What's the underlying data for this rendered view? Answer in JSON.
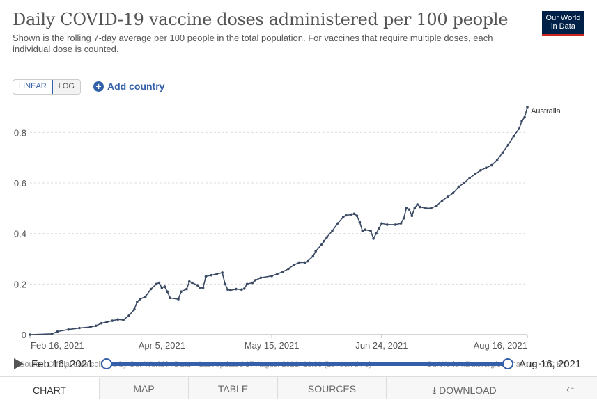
{
  "header": {
    "title": "Daily COVID-19 vaccine doses administered per 100 people",
    "subtitle": "Shown is the rolling 7-day average per 100 people in the total population. For vaccines that require multiple doses, each individual dose is counted.",
    "logo_line1": "Our World",
    "logo_line2": "in Data"
  },
  "controls": {
    "linear_label": "LINEAR",
    "log_label": "LOG",
    "add_country_label": "Add country"
  },
  "timeline": {
    "start_label": "Feb 16, 2021",
    "end_label": "Aug 16, 2021",
    "source_text": "Source: Official data collated by Our World in Data – Last updated 17 August 2021, 18:00 (London time)",
    "right_text": "OurWorldInData.org/coronavirus • CC BY"
  },
  "tabs": {
    "chart": "CHART",
    "map": "MAP",
    "table": "TABLE",
    "sources": "SOURCES",
    "download": "DOWNLOAD"
  },
  "colors": {
    "line": "#3b4a64",
    "grid": "#dddddd",
    "accent": "#3360a9"
  },
  "chart_data": {
    "type": "line",
    "title": "Daily COVID-19 vaccine doses administered per 100 people",
    "xlabel": "",
    "ylabel": "",
    "ylim": [
      0,
      0.9
    ],
    "yticks": [
      0,
      0.2,
      0.4,
      0.6,
      0.8
    ],
    "ytick_labels": [
      "0",
      "0.2",
      "0.4",
      "0.6",
      "0.8"
    ],
    "xlim_days": [
      0,
      181
    ],
    "xticks": [
      {
        "day": 0,
        "label": "Feb 16, 2021"
      },
      {
        "day": 48,
        "label": "Apr 5, 2021"
      },
      {
        "day": 88,
        "label": "May 15, 2021"
      },
      {
        "day": 128,
        "label": "Jun 24, 2021"
      },
      {
        "day": 181,
        "label": "Aug 16, 2021"
      }
    ],
    "series": [
      {
        "name": "Australia",
        "points": [
          [
            0,
            0
          ],
          [
            8,
            0.003
          ],
          [
            10,
            0.012
          ],
          [
            14,
            0.02
          ],
          [
            18,
            0.026
          ],
          [
            22,
            0.03
          ],
          [
            24,
            0.035
          ],
          [
            26,
            0.045
          ],
          [
            28,
            0.05
          ],
          [
            30,
            0.055
          ],
          [
            32,
            0.06
          ],
          [
            34,
            0.058
          ],
          [
            36,
            0.075
          ],
          [
            38,
            0.1
          ],
          [
            39,
            0.13
          ],
          [
            40,
            0.14
          ],
          [
            42,
            0.15
          ],
          [
            44,
            0.18
          ],
          [
            46,
            0.2
          ],
          [
            47,
            0.205
          ],
          [
            48,
            0.185
          ],
          [
            49,
            0.19
          ],
          [
            50,
            0.17
          ],
          [
            51,
            0.145
          ],
          [
            54,
            0.14
          ],
          [
            55,
            0.17
          ],
          [
            57,
            0.18
          ],
          [
            58,
            0.21
          ],
          [
            59,
            0.205
          ],
          [
            61,
            0.195
          ],
          [
            62,
            0.185
          ],
          [
            63,
            0.185
          ],
          [
            64,
            0.23
          ],
          [
            66,
            0.235
          ],
          [
            68,
            0.24
          ],
          [
            70,
            0.245
          ],
          [
            71,
            0.2
          ],
          [
            72,
            0.178
          ],
          [
            73,
            0.175
          ],
          [
            75,
            0.18
          ],
          [
            77,
            0.178
          ],
          [
            78,
            0.182
          ],
          [
            79,
            0.2
          ],
          [
            81,
            0.205
          ],
          [
            82,
            0.215
          ],
          [
            84,
            0.225
          ],
          [
            88,
            0.232
          ],
          [
            90,
            0.24
          ],
          [
            92,
            0.248
          ],
          [
            94,
            0.26
          ],
          [
            96,
            0.275
          ],
          [
            98,
            0.285
          ],
          [
            100,
            0.285
          ],
          [
            101,
            0.29
          ],
          [
            103,
            0.31
          ],
          [
            104,
            0.33
          ],
          [
            106,
            0.355
          ],
          [
            107,
            0.37
          ],
          [
            108,
            0.385
          ],
          [
            110,
            0.41
          ],
          [
            112,
            0.44
          ],
          [
            114,
            0.465
          ],
          [
            115,
            0.472
          ],
          [
            117,
            0.475
          ],
          [
            118,
            0.478
          ],
          [
            119,
            0.47
          ],
          [
            120,
            0.445
          ],
          [
            121,
            0.41
          ],
          [
            122,
            0.415
          ],
          [
            124,
            0.41
          ],
          [
            125,
            0.38
          ],
          [
            126,
            0.4
          ],
          [
            127,
            0.42
          ],
          [
            128,
            0.44
          ],
          [
            130,
            0.435
          ],
          [
            133,
            0.435
          ],
          [
            135,
            0.44
          ],
          [
            136,
            0.46
          ],
          [
            137,
            0.5
          ],
          [
            138,
            0.495
          ],
          [
            139,
            0.47
          ],
          [
            140,
            0.5
          ],
          [
            141,
            0.515
          ],
          [
            142,
            0.505
          ],
          [
            144,
            0.5
          ],
          [
            146,
            0.5
          ],
          [
            148,
            0.51
          ],
          [
            150,
            0.53
          ],
          [
            152,
            0.545
          ],
          [
            154,
            0.56
          ],
          [
            156,
            0.585
          ],
          [
            158,
            0.6
          ],
          [
            160,
            0.62
          ],
          [
            162,
            0.635
          ],
          [
            164,
            0.65
          ],
          [
            166,
            0.66
          ],
          [
            168,
            0.67
          ],
          [
            170,
            0.69
          ],
          [
            172,
            0.72
          ],
          [
            174,
            0.75
          ],
          [
            176,
            0.785
          ],
          [
            178,
            0.815
          ],
          [
            179,
            0.845
          ],
          [
            180,
            0.86
          ],
          [
            181,
            0.9
          ]
        ]
      }
    ],
    "legend_placement": "line end label"
  }
}
